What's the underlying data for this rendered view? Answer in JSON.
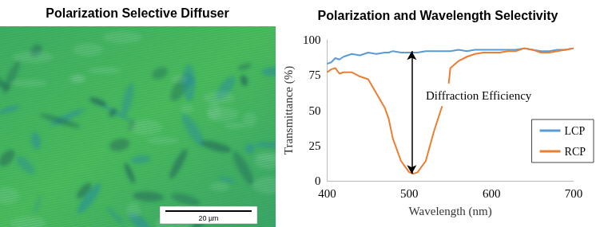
{
  "image_panel": {
    "title": "Polarization Selective Diffuser",
    "scale_bar": "20 µm"
  },
  "chart_data": {
    "type": "line",
    "title": "Polarization and Wavelength Selectivity",
    "x_label": "Wavelength (nm)",
    "y_label": "Transmittance (%)",
    "x": [
      400,
      405,
      410,
      415,
      420,
      430,
      440,
      450,
      460,
      470,
      475,
      480,
      490,
      500,
      505,
      510,
      520,
      530,
      540,
      545,
      548,
      550,
      560,
      570,
      580,
      590,
      600,
      610,
      620,
      630,
      640,
      650,
      660,
      670,
      680,
      690,
      700
    ],
    "series": [
      {
        "name": "LCP",
        "color": "#5b9bd5",
        "values": [
          83,
          84,
          87,
          86,
          88,
          90,
          89,
          91,
          90,
          91,
          91,
          92,
          91,
          91,
          91,
          91,
          92,
          92,
          92,
          92,
          92,
          92,
          93,
          92,
          93,
          93,
          93,
          93,
          93,
          93,
          94,
          93,
          92,
          92,
          93,
          93,
          94
        ]
      },
      {
        "name": "RCP",
        "color": "#ed7d31",
        "values": [
          77,
          79,
          80,
          76,
          77,
          77,
          74,
          72,
          62,
          52,
          44,
          30,
          14,
          6,
          5,
          6,
          14,
          35,
          53,
          null,
          69,
          80,
          85,
          88,
          90,
          91,
          91,
          91,
          92,
          92,
          94,
          93,
          91,
          91,
          92,
          93,
          94
        ]
      }
    ],
    "xlim": [
      400,
      700
    ],
    "xticks": [
      400,
      500,
      600,
      700
    ],
    "ylim": [
      0,
      100
    ],
    "yticks": [
      0,
      25,
      50,
      75,
      100
    ],
    "grid": false,
    "legend": "right",
    "annotations": [
      {
        "text": "Diffraction Efficiency",
        "x": 503,
        "y_from": 92,
        "y_to": 5
      }
    ]
  }
}
